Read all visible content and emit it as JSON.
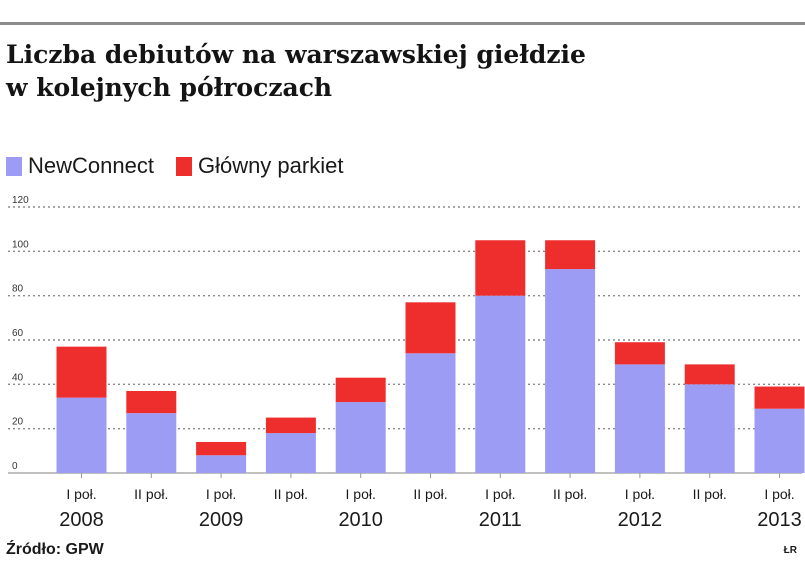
{
  "title_lines": [
    "Liczba debiutów na warszawskiej giełdzie",
    "w kolejnych półroczach"
  ],
  "legend": [
    {
      "label": "NewConnect",
      "color": "#9d9cf4"
    },
    {
      "label": "Główny parkiet",
      "color": "#ee2d2d"
    }
  ],
  "footer": {
    "source": "Źródło: GPW",
    "credit": "ŁR"
  },
  "chart_data": {
    "type": "bar",
    "stacked": true,
    "title": "Liczba debiutów na warszawskiej giełdzie w kolejnych półroczach",
    "categories": [
      "I poł.",
      "II poł.",
      "I poł.",
      "II poł.",
      "I poł.",
      "II poł.",
      "I poł.",
      "II poł.",
      "I poł.",
      "II poł.",
      "I poł."
    ],
    "years": [
      "2008",
      "2009",
      "2010",
      "2011",
      "2012",
      "2013"
    ],
    "series": [
      {
        "name": "NewConnect",
        "color": "#9d9cf4",
        "values": [
          34,
          27,
          8,
          18,
          32,
          54,
          80,
          92,
          49,
          40,
          29
        ]
      },
      {
        "name": "Główny parkiet",
        "color": "#ee2d2d",
        "values": [
          23,
          10,
          6,
          7,
          11,
          23,
          25,
          13,
          10,
          9,
          10
        ]
      }
    ],
    "yticks": [
      0,
      20,
      40,
      60,
      80,
      100,
      120
    ],
    "ylim": [
      0,
      120
    ],
    "grid": true,
    "legend_position": "top-left"
  }
}
